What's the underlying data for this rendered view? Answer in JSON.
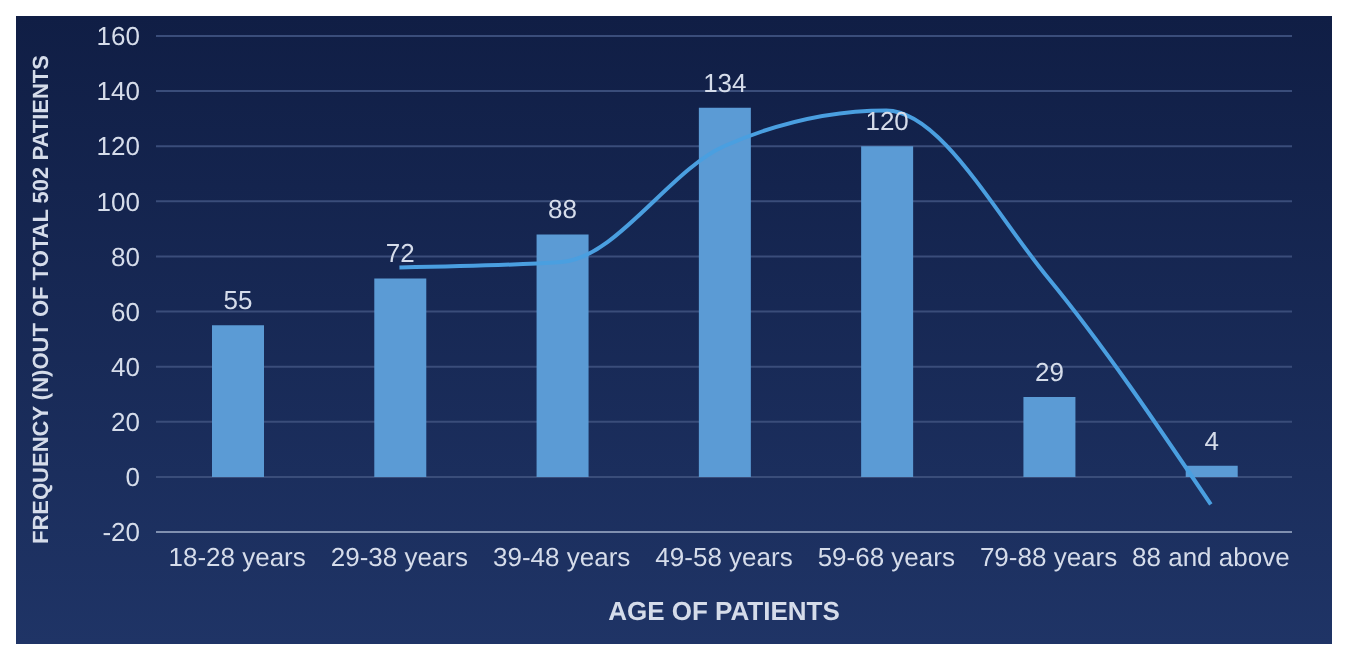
{
  "chart_data": {
    "type": "bar",
    "xlabel": "AGE OF PATIENTS",
    "ylabel": "FREQUENCY (N)OUT OF TOTAL 502 PATIENTS",
    "categories": [
      "18-28 years",
      "29-38 years",
      "39-48 years",
      "49-58 years",
      "59-68 years",
      "79-88 years",
      "88 and above"
    ],
    "series": [
      {
        "color": "#5b9bd5",
        "values": [
          55,
          72,
          88,
          134,
          120,
          29,
          4
        ],
        "data_labels": true
      },
      {
        "type": "line",
        "color": "#4a9fe0",
        "values": [
          null,
          76,
          78,
          120,
          133,
          72,
          -10
        ],
        "marker": "none"
      }
    ],
    "ylim": [
      -20,
      160
    ],
    "yticks": [
      -20,
      0,
      20,
      40,
      60,
      80,
      100,
      120,
      140,
      160
    ],
    "grid": "y",
    "legend": false
  }
}
